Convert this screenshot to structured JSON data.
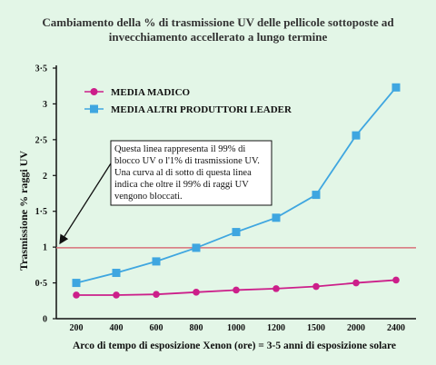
{
  "chart_data": {
    "type": "line",
    "title_line1": "Cambiamento della % di trasmissione UV delle pellicole sottoposte ad",
    "title_line2": "invecchiamento accellerato a lungo termine",
    "xlabel": "Arco di tempo di esposizione Xenon (ore) = 3-5 anni di esposizione solare",
    "ylabel": "Trasmissione % raggi UV",
    "categories": [
      "200",
      "400",
      "600",
      "800",
      "1000",
      "1200",
      "1500",
      "2000",
      "2400"
    ],
    "y_ticks": [
      "0",
      "0.5",
      "1",
      "1.5",
      "2",
      "2.5",
      "3",
      "3.5"
    ],
    "ylim": [
      0,
      3.5
    ],
    "series": [
      {
        "name": "MEDIA MADICO",
        "color": "#cc1f8a",
        "marker": "circle",
        "values": [
          0.33,
          0.33,
          0.34,
          0.37,
          0.4,
          0.42,
          0.45,
          0.5,
          0.54
        ]
      },
      {
        "name": "MEDIA ALTRI PRODUTTORI LEADER",
        "color": "#3fa6e0",
        "marker": "square",
        "values": [
          0.5,
          0.64,
          0.8,
          0.99,
          1.21,
          1.41,
          1.73,
          2.56,
          3.23
        ]
      }
    ],
    "reference_line": {
      "value": 0.99,
      "color": "#d9707a"
    },
    "annotation": [
      "Questa linea rappresenta il 99% di",
      "blocco UV o l'1% di trasmissione UV.",
      "Una curva al di sotto di questa linea",
      "indica che oltre il 99% di raggi UV",
      "vengono bloccati."
    ],
    "legend_position": "top-left",
    "grid": false
  }
}
